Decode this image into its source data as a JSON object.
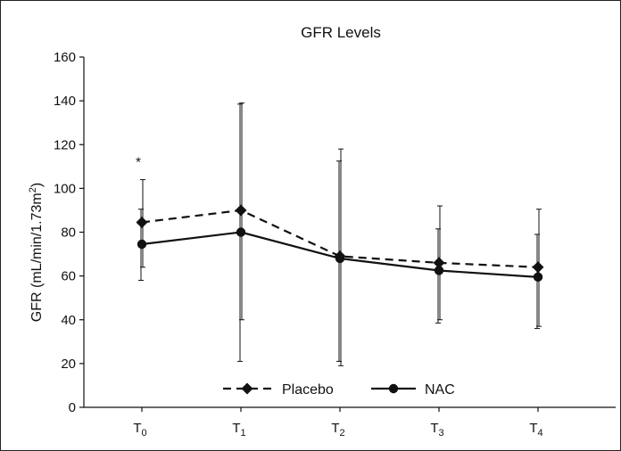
{
  "chart_data": {
    "type": "line",
    "title": "GFR Levels",
    "xlabel": "",
    "ylabel": "GFR (mL/min/1.73m²)",
    "ylabel_parts": {
      "main": "GFR (mL/min/1.73m",
      "sup": "2",
      "end": ")"
    },
    "ylim": [
      0,
      160
    ],
    "yticks": [
      0,
      20,
      40,
      60,
      80,
      100,
      120,
      140,
      160
    ],
    "ytick_labels": [
      "0",
      "20",
      "40",
      "60",
      "80",
      "100",
      "120",
      "140",
      "160"
    ],
    "categories": [
      {
        "base": "T",
        "sub": "0"
      },
      {
        "base": "T",
        "sub": "1"
      },
      {
        "base": "T",
        "sub": "2"
      },
      {
        "base": "T",
        "sub": "3"
      },
      {
        "base": "T",
        "sub": "4"
      }
    ],
    "series": [
      {
        "name": "Placebo",
        "style": "dashed",
        "marker": "diamond",
        "color": "#111111",
        "values": [
          84.5,
          90,
          69,
          66,
          64
        ],
        "err_high": [
          104,
          139,
          118,
          92,
          90.5
        ],
        "err_low": [
          64,
          40,
          19,
          40,
          37
        ]
      },
      {
        "name": "NAC",
        "style": "solid",
        "marker": "circle",
        "color": "#111111",
        "values": [
          74.5,
          80,
          68,
          62.5,
          59.5
        ],
        "err_high": [
          90.5,
          138.5,
          112.5,
          81.5,
          79
        ],
        "err_low": [
          58,
          21,
          21,
          38.5,
          36
        ]
      }
    ],
    "annotations": [
      {
        "text": "*",
        "category_index": 0,
        "value": 115
      }
    ],
    "legend": {
      "position": "bottom-center",
      "entries": [
        "Placebo",
        "NAC"
      ]
    },
    "grid": false
  }
}
